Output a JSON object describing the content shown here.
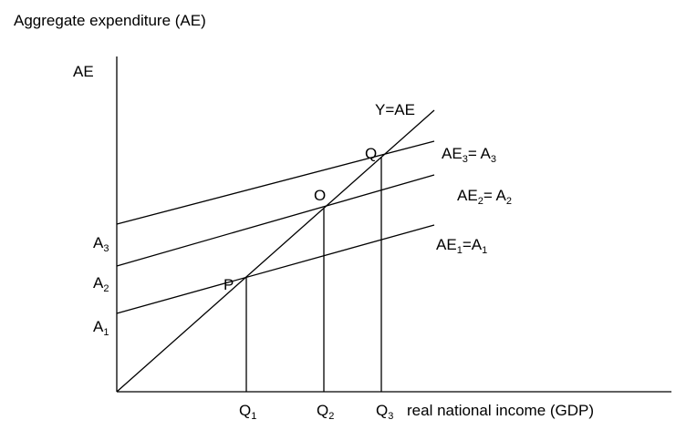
{
  "title": "Aggregate expenditure (AE)",
  "y_axis_label": "AE",
  "x_axis_label": "real national income (GDP)",
  "line_45_label": "Y=AE",
  "points": [
    "P",
    "O",
    "Q"
  ],
  "y_ticks": [
    [
      "A",
      "3"
    ],
    [
      "A",
      "2"
    ],
    [
      "A",
      "1"
    ]
  ],
  "x_ticks": [
    [
      "Q",
      "1"
    ],
    [
      "Q",
      "2"
    ],
    [
      "Q",
      "3"
    ]
  ],
  "lines": [
    {
      "label": [
        "AE",
        "3",
        "= A",
        "3"
      ]
    },
    {
      "label": [
        "AE",
        "2",
        "= A",
        "2"
      ]
    },
    {
      "label": [
        "AE",
        "1",
        "=A",
        "1"
      ]
    }
  ]
}
